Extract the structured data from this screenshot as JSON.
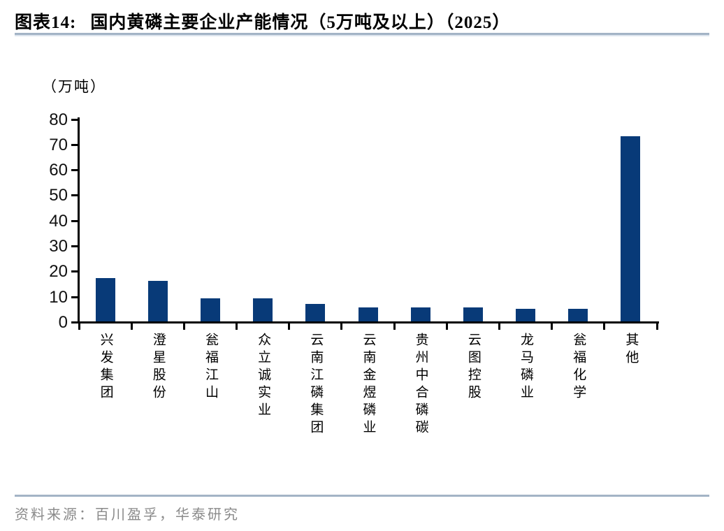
{
  "header": {
    "label": "图表14:",
    "title": "国内黄磷主要企业产能情况（5万吨及以上）（2025）"
  },
  "footer": {
    "source": "资料来源：百川盈孚，华泰研究"
  },
  "colors": {
    "bar": "#083a78",
    "rule": "#a3b4c6",
    "source_text": "#8a8a8a"
  },
  "chart_data": {
    "type": "bar",
    "title": "国内黄磷主要企业产能情况（5万吨及以上）（2025）",
    "unit_label": "（万吨）",
    "ylabel": "万吨",
    "xlabel": "",
    "ylim": [
      0,
      80
    ],
    "yticks": [
      0,
      10,
      20,
      30,
      40,
      50,
      60,
      70,
      80
    ],
    "grid": false,
    "legend": false,
    "categories": [
      "兴发集团",
      "澄星股份",
      "瓮福江山",
      "众立诚实业",
      "云南江磷集团",
      "云南金煜磷业",
      "贵州中合磷碳",
      "云图控股",
      "龙马磷业",
      "瓮福化学",
      "其他"
    ],
    "values": [
      17,
      16,
      9,
      9,
      7,
      5.5,
      5.5,
      5.5,
      5,
      5,
      73
    ],
    "bar_color": "#083a78"
  }
}
